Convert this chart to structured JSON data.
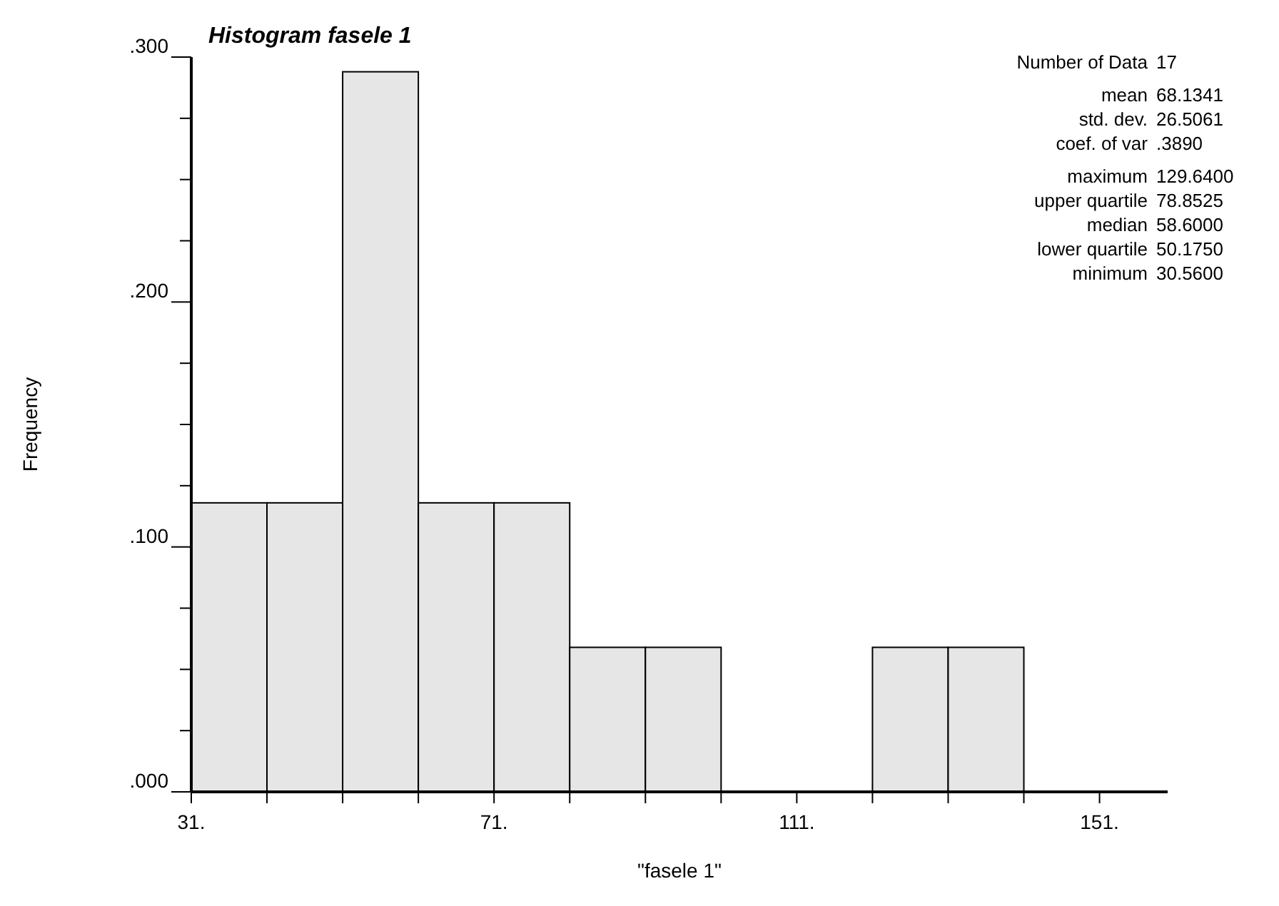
{
  "chart_data": {
    "type": "histogram",
    "title": "Histogram fasele 1",
    "xlabel": "\"fasele 1\"",
    "ylabel": "Frequency",
    "bins": [
      31,
      41,
      51,
      61,
      71,
      81,
      91,
      101,
      111,
      121,
      131,
      141
    ],
    "values": [
      0.118,
      0.118,
      0.294,
      0.118,
      0.118,
      0.059,
      0.059,
      0,
      0,
      0.059,
      0.059
    ],
    "color": "#e6e6e6",
    "xlim": [
      31,
      160
    ],
    "xticks": [
      {
        "value": 31,
        "label": "31."
      },
      {
        "value": 41,
        "label": null
      },
      {
        "value": 51,
        "label": null
      },
      {
        "value": 61,
        "label": null
      },
      {
        "value": 71,
        "label": "71."
      },
      {
        "value": 81,
        "label": null
      },
      {
        "value": 91,
        "label": null
      },
      {
        "value": 101,
        "label": null
      },
      {
        "value": 111,
        "label": "111."
      },
      {
        "value": 121,
        "label": null
      },
      {
        "value": 131,
        "label": null
      },
      {
        "value": 141,
        "label": null
      },
      {
        "value": 151,
        "label": "151."
      }
    ],
    "ylim": [
      0,
      0.3
    ],
    "yticks": [
      {
        "value": 0,
        "label": ".000"
      },
      {
        "value": 0.025,
        "label": null
      },
      {
        "value": 0.05,
        "label": null
      },
      {
        "value": 0.075,
        "label": null
      },
      {
        "value": 0.1,
        "label": ".100"
      },
      {
        "value": 0.125,
        "label": null
      },
      {
        "value": 0.15,
        "label": null
      },
      {
        "value": 0.175,
        "label": null
      },
      {
        "value": 0.2,
        "label": ".200"
      },
      {
        "value": 0.225,
        "label": null
      },
      {
        "value": 0.25,
        "label": null
      },
      {
        "value": 0.275,
        "label": null
      },
      {
        "value": 0.3,
        "label": ".300"
      }
    ],
    "grid": false,
    "annotations": [
      "Number of Data 17",
      "mean 68.1341",
      "std. dev. 26.5061",
      "coef. of var .3890",
      "maximum 129.6400",
      "upper quartile 78.8525",
      "median 58.6000",
      "lower quartile 50.1750",
      "minimum 30.5600"
    ]
  }
}
